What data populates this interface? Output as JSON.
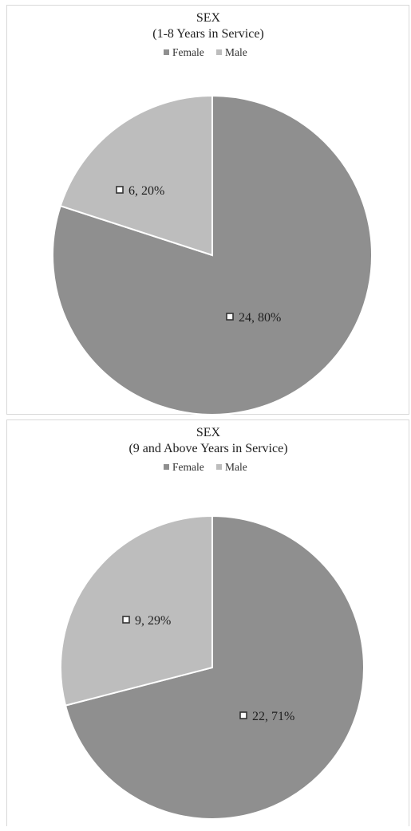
{
  "chart_data": [
    {
      "type": "pie",
      "title": "SEX",
      "subtitle": "(1-8 Years in Service)",
      "legend_position": "top",
      "categories": [
        "Female",
        "Male"
      ],
      "values": [
        24,
        6
      ],
      "percentages": [
        "80%",
        "20%"
      ],
      "data_labels": [
        "24, 80%",
        "6, 20%"
      ],
      "colors": [
        "#8f8f8f",
        "#bdbdbd"
      ]
    },
    {
      "type": "pie",
      "title": "SEX",
      "subtitle": "(9 and Above Years in Service)",
      "legend_position": "top",
      "categories": [
        "Female",
        "Male"
      ],
      "values": [
        22,
        9
      ],
      "percentages": [
        "71%",
        "29%"
      ],
      "data_labels": [
        "22, 71%",
        "9, 29%"
      ],
      "colors": [
        "#8f8f8f",
        "#bdbdbd"
      ]
    }
  ]
}
